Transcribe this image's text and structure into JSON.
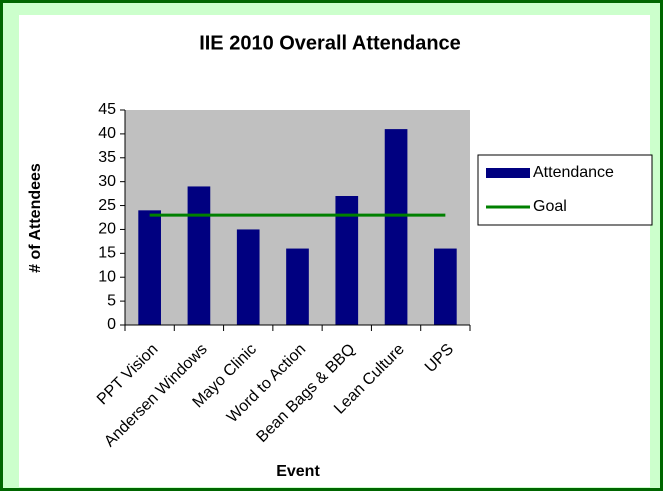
{
  "chart_data": {
    "type": "bar",
    "title": "IIE 2010 Overall Attendance",
    "xlabel": "Event",
    "ylabel": "# of Attendees",
    "categories": [
      "PPT Vision",
      "Andersen Windows",
      "Mayo Clinic",
      "Word to Action",
      "Bean Bags & BBQ",
      "Lean Culture",
      "UPS"
    ],
    "series": [
      {
        "name": "Attendance",
        "type": "bar",
        "color": "#000080",
        "values": [
          24,
          29,
          20,
          16,
          27,
          41,
          16
        ]
      },
      {
        "name": "Goal",
        "type": "line",
        "color": "#008000",
        "values": [
          23,
          23,
          23,
          23,
          23,
          23,
          23
        ]
      }
    ],
    "ylim": [
      0,
      45
    ],
    "yticks": [
      0,
      5,
      10,
      15,
      20,
      25,
      30,
      35,
      40,
      45
    ],
    "grid": false,
    "legend": "right"
  }
}
